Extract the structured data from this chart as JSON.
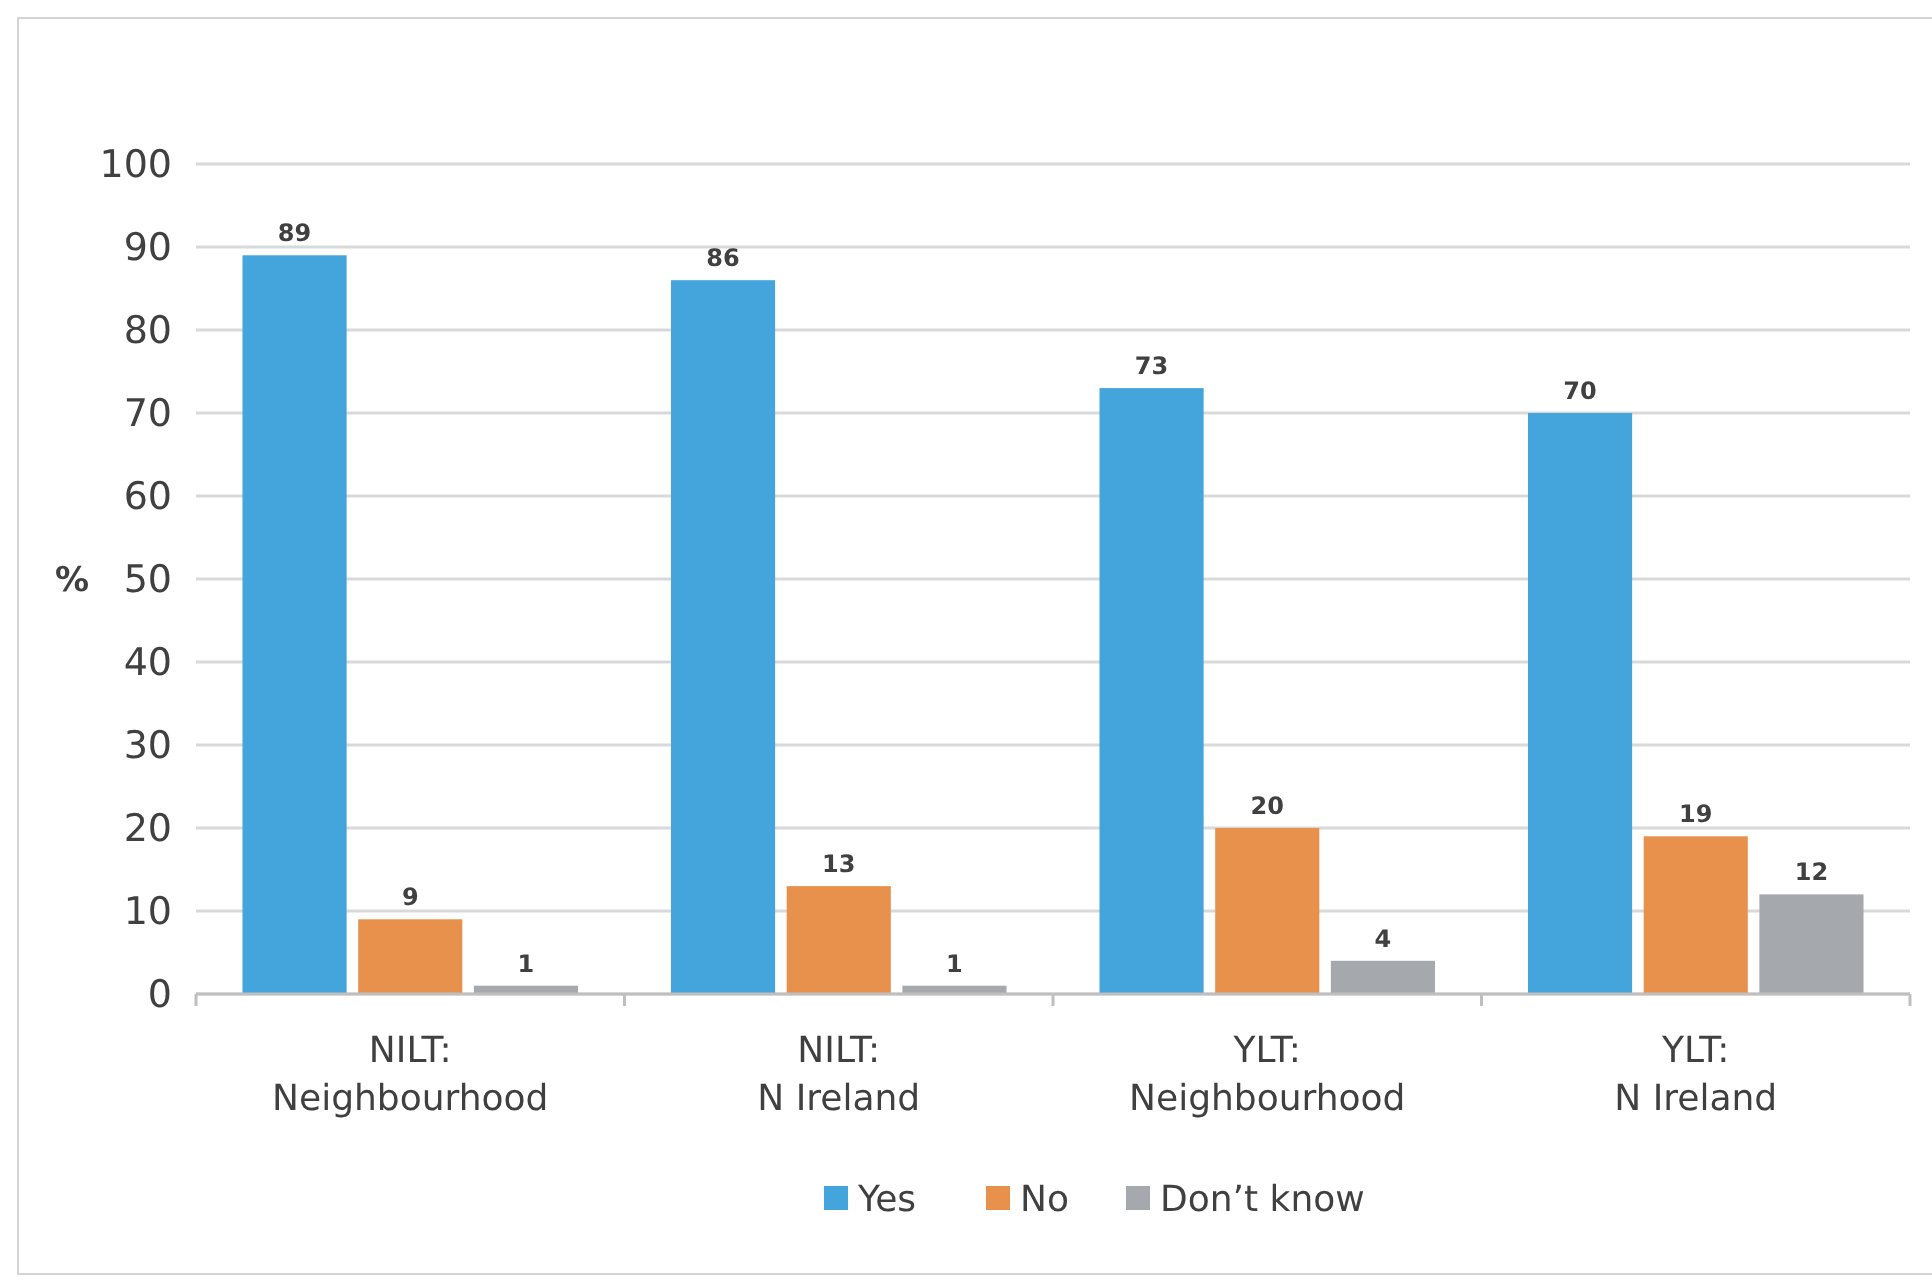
{
  "chart_data": {
    "type": "bar",
    "ylabel": "%",
    "categories": [
      "NILT:\nNeighbourhood",
      "NILT:\nN Ireland",
      "YLT:\nNeighbourhood",
      "YLT:\nN Ireland"
    ],
    "series": [
      {
        "name": "Yes",
        "color": "#44a4dc",
        "values": [
          89,
          86,
          73,
          70
        ]
      },
      {
        "name": "No",
        "color": "#e8914c",
        "values": [
          9,
          13,
          20,
          19
        ]
      },
      {
        "name": "Don’t know",
        "color": "#a5a8ad",
        "values": [
          1,
          1,
          4,
          12
        ]
      }
    ],
    "ylim": [
      0,
      100
    ],
    "yticks": [
      0,
      10,
      20,
      30,
      40,
      50,
      60,
      70,
      80,
      90,
      100
    ],
    "grid": "y",
    "legend": "bottom",
    "data_labels": true
  }
}
